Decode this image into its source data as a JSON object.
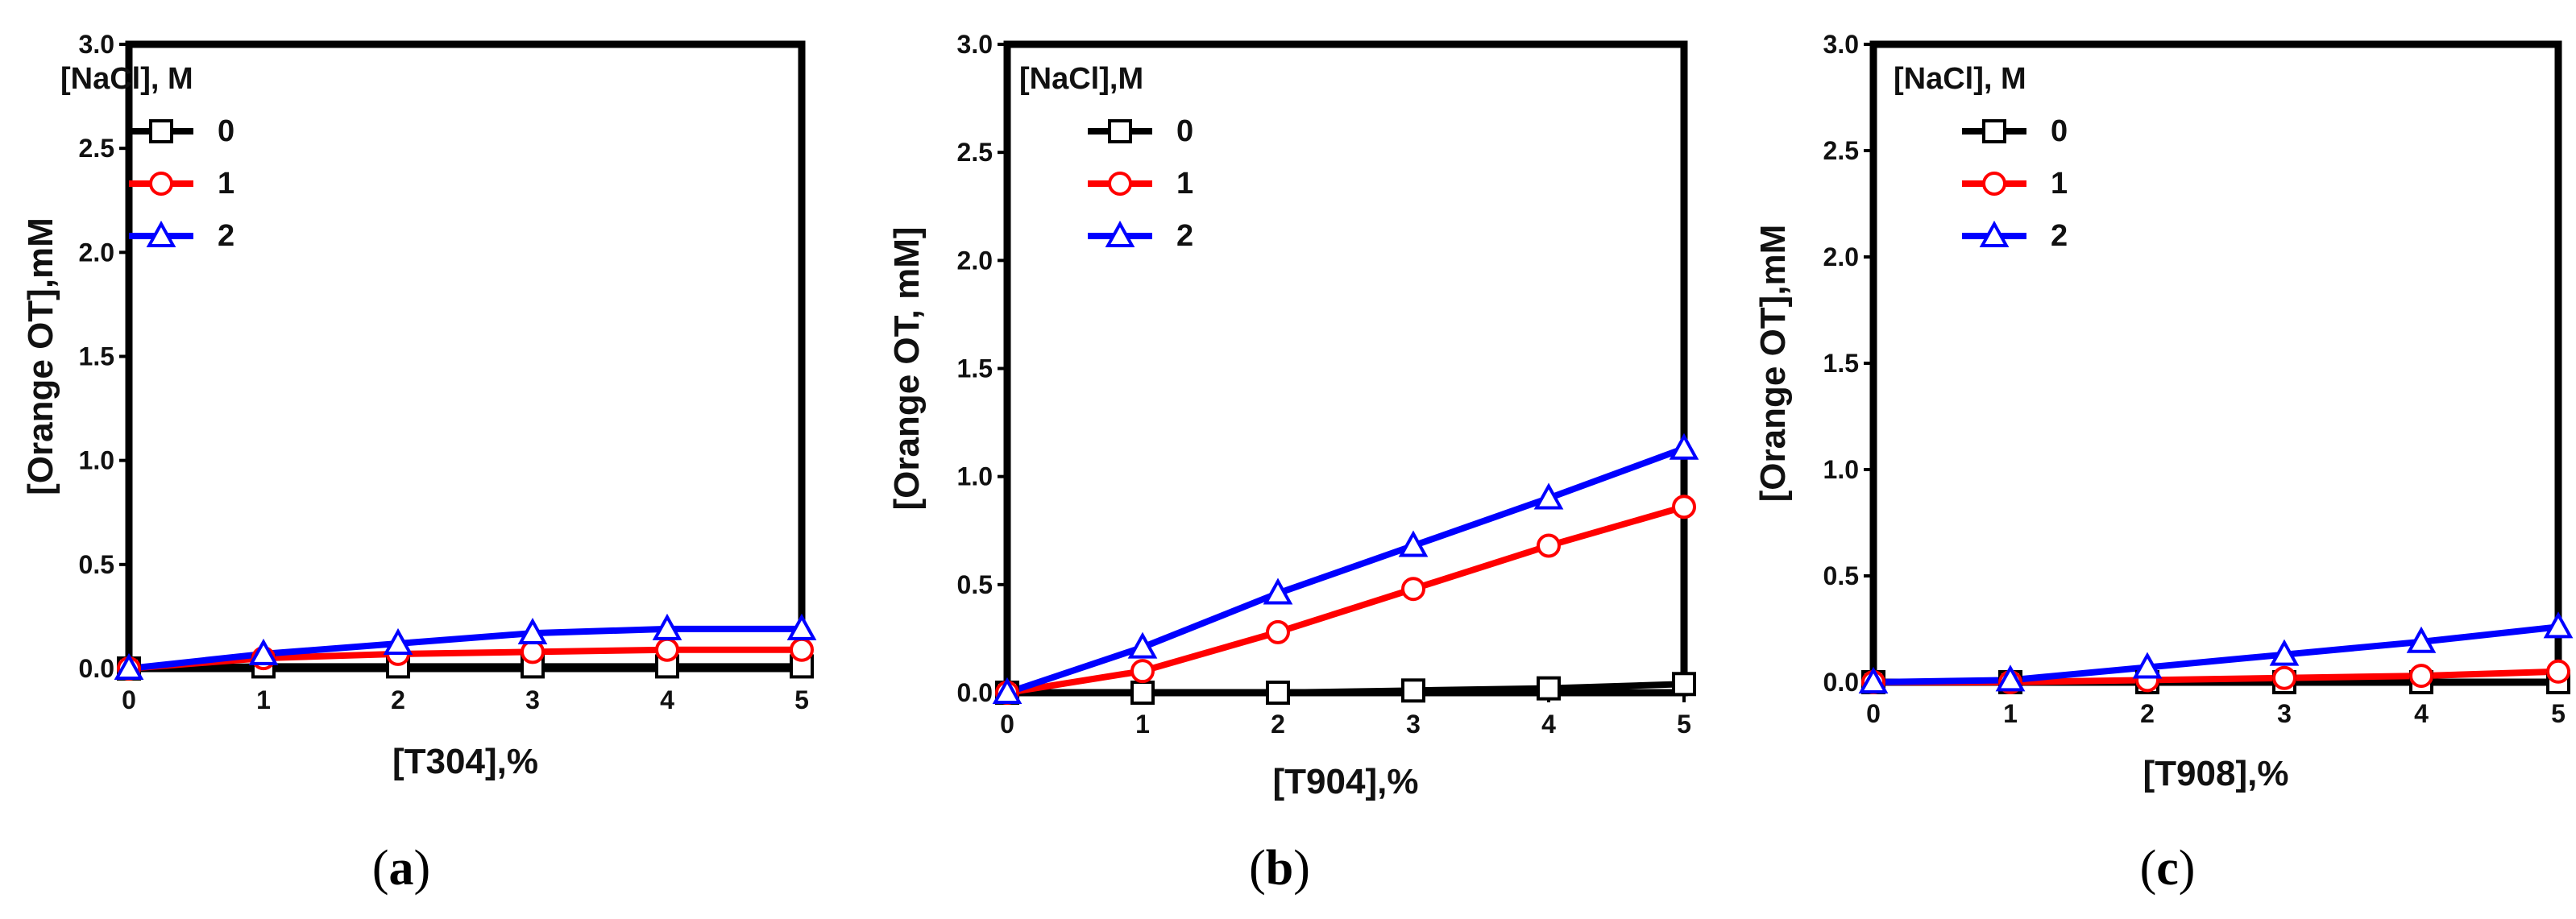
{
  "chart_data": [
    {
      "type": "line",
      "caption": "a",
      "xlabel": "[T304],%",
      "ylabel": "[Orange OT],mM",
      "xlim": [
        0,
        5
      ],
      "ylim": [
        0,
        3
      ],
      "xticks": [
        "0",
        "1",
        "2",
        "3",
        "4",
        "5"
      ],
      "yticks": [
        "0.0",
        "0.5",
        "1.0",
        "1.5",
        "2.0",
        "2.5",
        "3.0"
      ],
      "legend_title": "[NaCl], M",
      "x": [
        0,
        1,
        2,
        3,
        4,
        5
      ],
      "series": [
        {
          "name": "0",
          "color": "#000000",
          "marker": "square",
          "values": [
            0,
            0.01,
            0.01,
            0.01,
            0.01,
            0.01
          ]
        },
        {
          "name": "1",
          "color": "#ff0000",
          "marker": "circle",
          "values": [
            0,
            0.05,
            0.07,
            0.08,
            0.09,
            0.09
          ]
        },
        {
          "name": "2",
          "color": "#0000ff",
          "marker": "triangle",
          "values": [
            0,
            0.07,
            0.12,
            0.17,
            0.19,
            0.19
          ]
        }
      ]
    },
    {
      "type": "line",
      "caption": "b",
      "xlabel": "[T904],%",
      "ylabel": "[Orange OT, mM]",
      "xlim": [
        0,
        5
      ],
      "ylim": [
        0,
        3
      ],
      "xticks": [
        "0",
        "1",
        "2",
        "3",
        "4",
        "5"
      ],
      "yticks": [
        "0.0",
        "0.5",
        "1.0",
        "1.5",
        "2.0",
        "2.5",
        "3.0"
      ],
      "legend_title": "[NaCl],M",
      "x": [
        0,
        1,
        2,
        3,
        4,
        5
      ],
      "series": [
        {
          "name": "0",
          "color": "#000000",
          "marker": "square",
          "values": [
            0,
            0.0,
            0.0,
            0.01,
            0.02,
            0.04
          ]
        },
        {
          "name": "1",
          "color": "#ff0000",
          "marker": "circle",
          "values": [
            0,
            0.1,
            0.28,
            0.48,
            0.68,
            0.86
          ]
        },
        {
          "name": "2",
          "color": "#0000ff",
          "marker": "triangle",
          "values": [
            0,
            0.21,
            0.46,
            0.68,
            0.9,
            1.13
          ]
        }
      ]
    },
    {
      "type": "line",
      "caption": "c",
      "xlabel": "[T908],%",
      "ylabel": "[Orange OT],mM",
      "xlim": [
        0,
        5
      ],
      "ylim": [
        0,
        3
      ],
      "xticks": [
        "0",
        "1",
        "2",
        "3",
        "4",
        "5"
      ],
      "yticks": [
        "0.0",
        "0.5",
        "1.0",
        "1.5",
        "2.0",
        "2.5",
        "3.0"
      ],
      "legend_title": "[NaCl], M",
      "x": [
        0,
        1,
        2,
        3,
        4,
        5
      ],
      "series": [
        {
          "name": "0",
          "color": "#000000",
          "marker": "square",
          "values": [
            0,
            0.0,
            0.0,
            0.0,
            0.0,
            0.0
          ]
        },
        {
          "name": "1",
          "color": "#ff0000",
          "marker": "circle",
          "values": [
            0,
            0.0,
            0.01,
            0.02,
            0.03,
            0.05
          ]
        },
        {
          "name": "2",
          "color": "#0000ff",
          "marker": "triangle",
          "values": [
            0,
            0.01,
            0.07,
            0.13,
            0.19,
            0.26
          ]
        }
      ]
    }
  ]
}
